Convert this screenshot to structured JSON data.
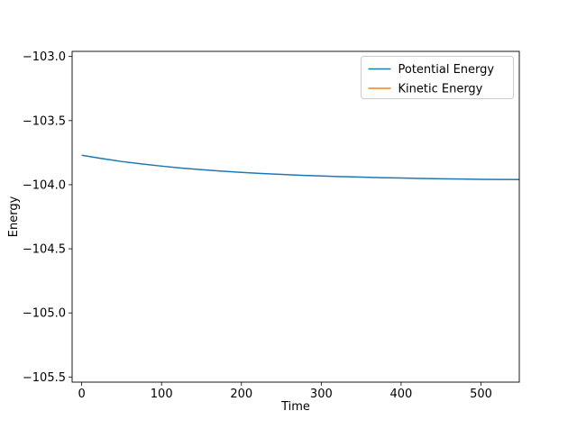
{
  "chart_data": {
    "type": "line",
    "title": "",
    "xlabel": "Time",
    "ylabel": "Energy",
    "xlim": [
      -12,
      548
    ],
    "ylim": [
      -105.54,
      -102.96
    ],
    "xticks": [
      0,
      100,
      200,
      300,
      400,
      500
    ],
    "yticks": [
      -105.5,
      -105.0,
      -104.5,
      -104.0,
      -103.5,
      -103.0
    ],
    "grid": false,
    "legend": {
      "position": "upper right",
      "border_color": "#cccccc",
      "entries": [
        {
          "label": "Potential Energy",
          "color": "#1f77b4"
        },
        {
          "label": "Kinetic Energy",
          "color": "#ff7f0e"
        }
      ]
    },
    "series": [
      {
        "name": "Potential Energy",
        "color": "#1f77b4",
        "visible_in_plot": true,
        "x": [
          0,
          25,
          50,
          75,
          100,
          125,
          150,
          175,
          200,
          225,
          250,
          275,
          300,
          325,
          350,
          375,
          400,
          425,
          450,
          475,
          500,
          525,
          548
        ],
        "y": [
          -103.77,
          -103.796,
          -103.819,
          -103.838,
          -103.855,
          -103.87,
          -103.883,
          -103.894,
          -103.904,
          -103.913,
          -103.92,
          -103.927,
          -103.932,
          -103.937,
          -103.941,
          -103.945,
          -103.948,
          -103.951,
          -103.954,
          -103.956,
          -103.958,
          -103.959,
          -103.96
        ]
      },
      {
        "name": "Kinetic Energy",
        "color": "#ff7f0e",
        "visible_in_plot": false,
        "x": [],
        "y": []
      }
    ]
  }
}
